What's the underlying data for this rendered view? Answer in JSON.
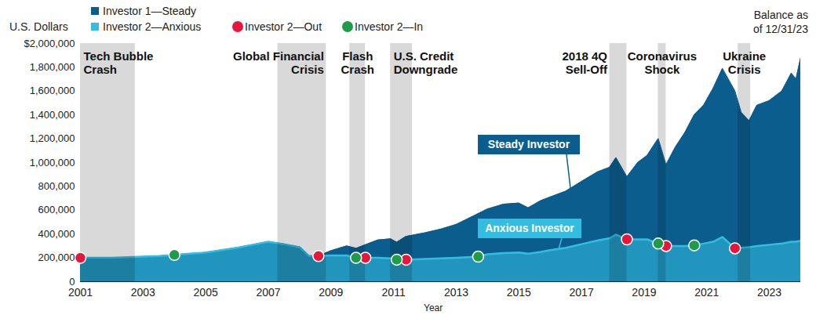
{
  "chart_data": {
    "type": "area",
    "subtitle": "Balance as\nof 12/31/23",
    "y_label": "U.S. Dollars",
    "x_label": "Year",
    "x": [
      2001,
      2001.5,
      2002,
      2002.5,
      2003,
      2003.5,
      2004,
      2004.5,
      2005,
      2005.5,
      2006,
      2006.5,
      2007,
      2007.5,
      2008,
      2008.3,
      2008.6,
      2009,
      2009.5,
      2009.8,
      2010.1,
      2010.5,
      2010.9,
      2011.1,
      2011.4,
      2012,
      2012.5,
      2013,
      2013.7,
      2014,
      2014.5,
      2015,
      2015.3,
      2015.7,
      2016,
      2016.5,
      2017,
      2017.5,
      2017.9,
      2018.1,
      2018.45,
      2018.8,
      2019.1,
      2019.45,
      2019.7,
      2020,
      2020.3,
      2020.6,
      2020.9,
      2021.2,
      2021.5,
      2021.9,
      2022.1,
      2022.35,
      2022.6,
      2023,
      2023.4,
      2023.7,
      2023.85,
      2024
    ],
    "series": [
      {
        "name": "Investor 1—Steady",
        "color": "#0b5d8e",
        "type": "area",
        "values": [
          195000,
          165000,
          135000,
          145000,
          175000,
          195000,
          225000,
          235000,
          245000,
          265000,
          285000,
          310000,
          335000,
          315000,
          290000,
          215000,
          215000,
          260000,
          300000,
          280000,
          310000,
          350000,
          360000,
          330000,
          380000,
          410000,
          440000,
          480000,
          570000,
          610000,
          650000,
          660000,
          620000,
          680000,
          710000,
          760000,
          840000,
          920000,
          960000,
          1040000,
          880000,
          1000000,
          1060000,
          1200000,
          980000,
          1130000,
          1250000,
          1400000,
          1480000,
          1620000,
          1790000,
          1600000,
          1420000,
          1350000,
          1480000,
          1520000,
          1600000,
          1750000,
          1700000,
          1880000
        ]
      },
      {
        "name": "Investor 2—Anxious",
        "color": "#33bde0",
        "type": "area",
        "values": [
          200000,
          200000,
          200000,
          205000,
          210000,
          215000,
          225000,
          235000,
          245000,
          265000,
          285000,
          310000,
          335000,
          315000,
          290000,
          215000,
          215000,
          220000,
          220000,
          200000,
          200000,
          200000,
          195000,
          185000,
          185000,
          190000,
          195000,
          200000,
          210000,
          230000,
          240000,
          245000,
          235000,
          250000,
          265000,
          285000,
          315000,
          345000,
          365000,
          395000,
          355000,
          355000,
          355000,
          320000,
          300000,
          300000,
          300000,
          305000,
          320000,
          335000,
          375000,
          280000,
          285000,
          290000,
          300000,
          310000,
          320000,
          335000,
          335000,
          345000
        ]
      },
      {
        "name": "Investor 2—Out",
        "color": "#e5173f",
        "type": "scatter",
        "marker": "circle",
        "x": [
          2001,
          2008.6,
          2010.1,
          2011.4,
          2018.45,
          2019.7,
          2021.9
        ],
        "values": [
          200000,
          215000,
          200000,
          185000,
          355000,
          300000,
          280000
        ]
      },
      {
        "name": "Investor 2—In",
        "color": "#1e9c4a",
        "type": "scatter",
        "marker": "circle",
        "x": [
          2004,
          2009.8,
          2011.1,
          2013.7,
          2019.45,
          2020.6
        ],
        "values": [
          225000,
          200000,
          185000,
          210000,
          320000,
          305000
        ]
      }
    ],
    "periods": [
      {
        "label": "Tech Bubble\nCrash",
        "start": 2001,
        "end": 2002.75
      },
      {
        "label": "Global Financial\nCrisis",
        "start": 2007.3,
        "end": 2008.85
      },
      {
        "label": "Flash\nCrash",
        "start": 2009.6,
        "end": 2010.1
      },
      {
        "label": "U.S. Credit\nDowngrade",
        "start": 2010.9,
        "end": 2011.6
      },
      {
        "label": "2018 4Q\nSell-Off",
        "start": 2017.9,
        "end": 2018.45
      },
      {
        "label": "Coronavirus\nShock",
        "start": 2019.45,
        "end": 2019.7
      },
      {
        "label": "Ukraine\nCrisis",
        "start": 2022,
        "end": 2022.4
      }
    ],
    "annotations": [
      "Steady Investor",
      "Anxious Investor"
    ],
    "xlim": [
      2001,
      2024
    ],
    "xticks": [
      2001,
      2003,
      2005,
      2007,
      2009,
      2011,
      2013,
      2015,
      2017,
      2019,
      2021,
      2023
    ],
    "ylim": [
      0,
      2000000
    ],
    "yticks": [
      0,
      {
        "value": 200000,
        "label": "200,000"
      },
      {
        "value": 400000,
        "label": "400,000"
      },
      {
        "value": 600000,
        "label": "600,000"
      },
      {
        "value": 800000,
        "label": "800,000"
      },
      {
        "value": 1000000,
        "label": "1,000,000"
      },
      {
        "value": 1200000,
        "label": "1,200,000"
      },
      {
        "value": 1400000,
        "label": "1,400,000"
      },
      {
        "value": 1600000,
        "label": "1,600,000"
      },
      {
        "value": 1800000,
        "label": "1,800,000"
      },
      {
        "value": 2000000,
        "label": "$2,000,000"
      }
    ],
    "grid": false,
    "legend": "top-left"
  }
}
